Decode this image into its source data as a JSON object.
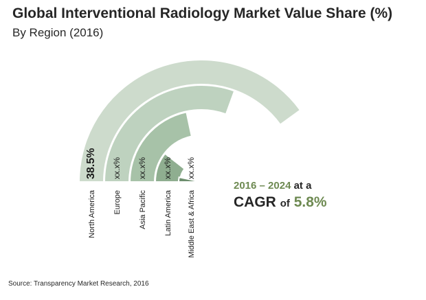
{
  "header": {
    "title": "Global Interventional Radiology Market Value Share (%)",
    "subtitle": "By Region (2016)"
  },
  "cagr": {
    "years": "2016 – 2024",
    "at_a": "at a",
    "cagr_label": "CAGR",
    "of": "of",
    "value": "5.8%"
  },
  "footer": {
    "source": "Source: Transparency Market Research, 2016"
  },
  "chart_data": {
    "type": "radial-bar",
    "title": "Global Interventional Radiology Market Value Share (%)",
    "subtitle": "By Region (2016)",
    "categories": [
      "North America",
      "Europe",
      "Asia Pacific",
      "Latin America",
      "Middle East & Africa"
    ],
    "value_labels": [
      "38.5%",
      "xx.x%",
      "xx.x%",
      "xx.x%",
      "xx.x%"
    ],
    "values": [
      38.5,
      null,
      null,
      null,
      null
    ],
    "colors": [
      "#cddbcc",
      "#bed2bf",
      "#a7c2a8",
      "#8fae90",
      "#6d8e6e"
    ],
    "label_colors": [
      "#1a1a1a",
      "#1a1a1a",
      "#1a1a1a",
      "#1a1a1a",
      "#1a1a1a"
    ]
  }
}
